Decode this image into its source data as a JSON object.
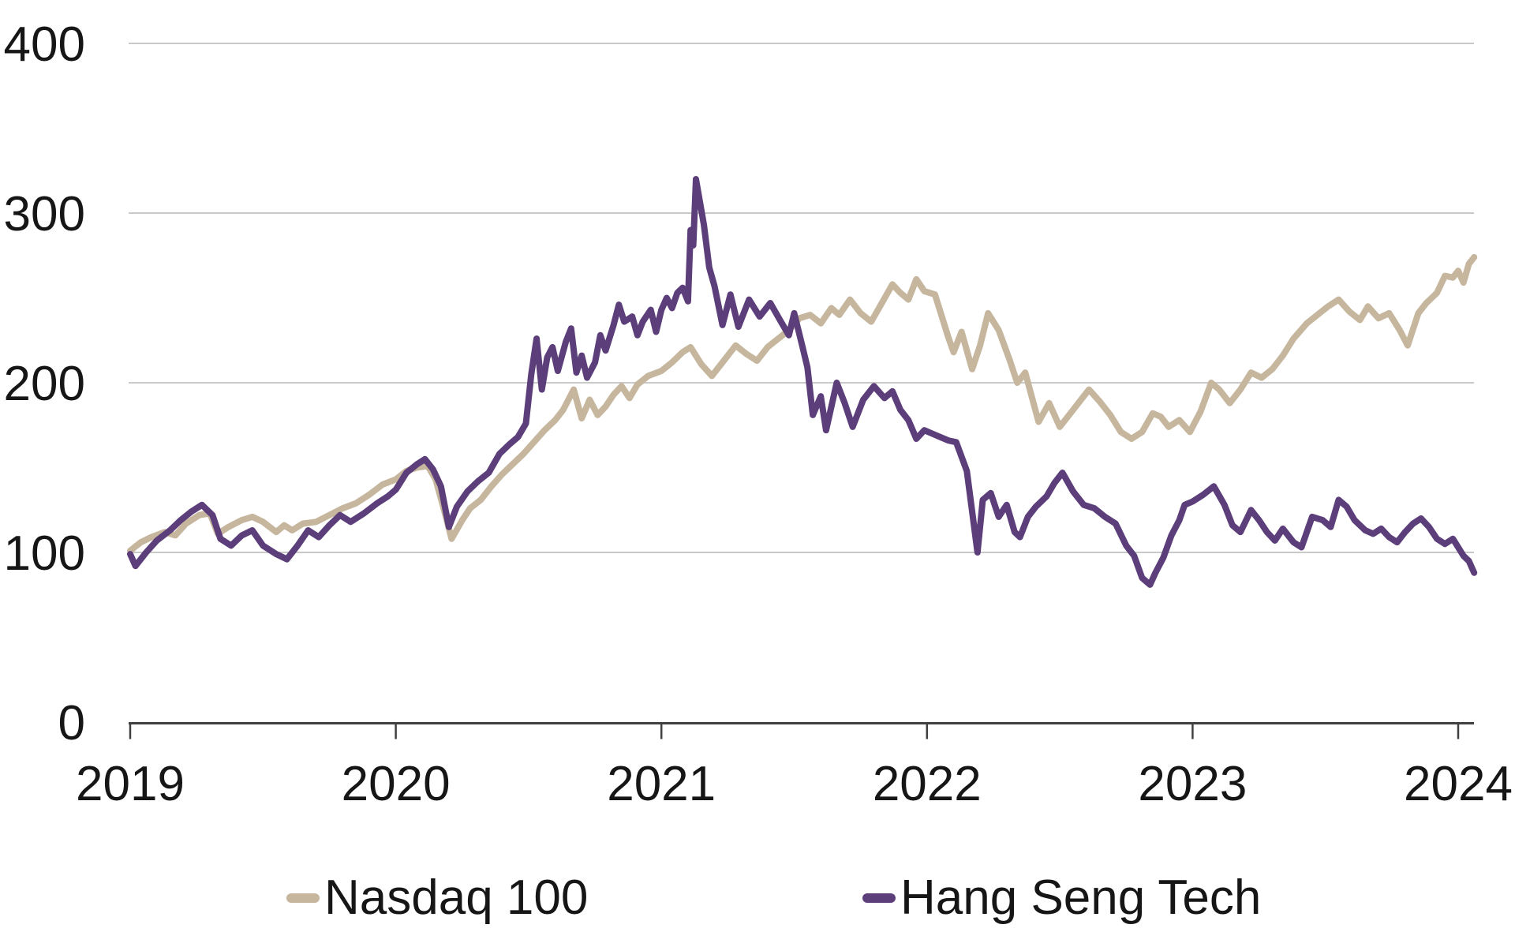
{
  "chart_data": {
    "type": "line",
    "title": "",
    "xlabel": "",
    "ylabel": "",
    "grid": true,
    "legend_position": "bottom",
    "x_axis": {
      "range": [
        2019,
        2024.07
      ],
      "ticks": [
        2019,
        2020,
        2021,
        2022,
        2023,
        2024
      ],
      "tick_labels": [
        "2019",
        "2020",
        "2021",
        "2022",
        "2023",
        "2024"
      ]
    },
    "y_axis": {
      "range": [
        0,
        400
      ],
      "ticks": [
        0,
        100,
        200,
        300,
        400
      ],
      "tick_labels": [
        "0",
        "100",
        "200",
        "300",
        "400"
      ],
      "gridline_values": [
        100,
        200,
        300,
        400
      ]
    },
    "style": {
      "grid_color": "#c9c9c9",
      "axis_color": "#404040",
      "text_color": "#161616",
      "background": "#ffffff",
      "line_width": 8
    },
    "series": [
      {
        "name": "Nasdaq 100",
        "color": "#c6b69e",
        "points": [
          [
            2019.0,
            101
          ],
          [
            2019.04,
            106
          ],
          [
            2019.08,
            109
          ],
          [
            2019.13,
            112
          ],
          [
            2019.17,
            110
          ],
          [
            2019.21,
            117
          ],
          [
            2019.26,
            122
          ],
          [
            2019.3,
            123
          ],
          [
            2019.33,
            111
          ],
          [
            2019.37,
            115
          ],
          [
            2019.42,
            119
          ],
          [
            2019.46,
            121
          ],
          [
            2019.5,
            118
          ],
          [
            2019.55,
            112
          ],
          [
            2019.58,
            116
          ],
          [
            2019.61,
            113
          ],
          [
            2019.65,
            117
          ],
          [
            2019.7,
            118
          ],
          [
            2019.75,
            122
          ],
          [
            2019.8,
            126
          ],
          [
            2019.85,
            129
          ],
          [
            2019.9,
            134
          ],
          [
            2019.95,
            140
          ],
          [
            2020.0,
            143
          ],
          [
            2020.04,
            148
          ],
          [
            2020.08,
            150
          ],
          [
            2020.12,
            151
          ],
          [
            2020.15,
            143
          ],
          [
            2020.18,
            126
          ],
          [
            2020.21,
            108
          ],
          [
            2020.25,
            119
          ],
          [
            2020.28,
            126
          ],
          [
            2020.32,
            131
          ],
          [
            2020.36,
            139
          ],
          [
            2020.4,
            146
          ],
          [
            2020.44,
            152
          ],
          [
            2020.48,
            158
          ],
          [
            2020.52,
            165
          ],
          [
            2020.56,
            172
          ],
          [
            2020.6,
            178
          ],
          [
            2020.63,
            184
          ],
          [
            2020.67,
            196
          ],
          [
            2020.7,
            179
          ],
          [
            2020.73,
            190
          ],
          [
            2020.76,
            181
          ],
          [
            2020.79,
            186
          ],
          [
            2020.82,
            193
          ],
          [
            2020.85,
            198
          ],
          [
            2020.88,
            191
          ],
          [
            2020.91,
            199
          ],
          [
            2020.95,
            204
          ],
          [
            2021.0,
            207
          ],
          [
            2021.04,
            212
          ],
          [
            2021.08,
            218
          ],
          [
            2021.11,
            221
          ],
          [
            2021.15,
            211
          ],
          [
            2021.19,
            204
          ],
          [
            2021.24,
            214
          ],
          [
            2021.28,
            222
          ],
          [
            2021.32,
            217
          ],
          [
            2021.36,
            213
          ],
          [
            2021.4,
            221
          ],
          [
            2021.44,
            226
          ],
          [
            2021.48,
            231
          ],
          [
            2021.52,
            238
          ],
          [
            2021.56,
            240
          ],
          [
            2021.6,
            235
          ],
          [
            2021.64,
            244
          ],
          [
            2021.67,
            240
          ],
          [
            2021.71,
            249
          ],
          [
            2021.75,
            241
          ],
          [
            2021.79,
            236
          ],
          [
            2021.83,
            247
          ],
          [
            2021.87,
            258
          ],
          [
            2021.9,
            253
          ],
          [
            2021.93,
            249
          ],
          [
            2021.96,
            261
          ],
          [
            2021.99,
            254
          ],
          [
            2022.03,
            252
          ],
          [
            2022.06,
            237
          ],
          [
            2022.08,
            227
          ],
          [
            2022.1,
            218
          ],
          [
            2022.13,
            230
          ],
          [
            2022.17,
            208
          ],
          [
            2022.2,
            222
          ],
          [
            2022.23,
            241
          ],
          [
            2022.27,
            231
          ],
          [
            2022.31,
            214
          ],
          [
            2022.34,
            200
          ],
          [
            2022.37,
            206
          ],
          [
            2022.42,
            177
          ],
          [
            2022.46,
            188
          ],
          [
            2022.5,
            174
          ],
          [
            2022.54,
            182
          ],
          [
            2022.58,
            190
          ],
          [
            2022.61,
            196
          ],
          [
            2022.65,
            189
          ],
          [
            2022.69,
            181
          ],
          [
            2022.73,
            171
          ],
          [
            2022.77,
            167
          ],
          [
            2022.81,
            171
          ],
          [
            2022.85,
            182
          ],
          [
            2022.88,
            180
          ],
          [
            2022.91,
            174
          ],
          [
            2022.95,
            178
          ],
          [
            2022.99,
            171
          ],
          [
            2023.03,
            183
          ],
          [
            2023.07,
            200
          ],
          [
            2023.1,
            196
          ],
          [
            2023.14,
            188
          ],
          [
            2023.18,
            196
          ],
          [
            2023.22,
            206
          ],
          [
            2023.26,
            203
          ],
          [
            2023.3,
            208
          ],
          [
            2023.34,
            216
          ],
          [
            2023.38,
            226
          ],
          [
            2023.43,
            235
          ],
          [
            2023.47,
            240
          ],
          [
            2023.51,
            245
          ],
          [
            2023.55,
            249
          ],
          [
            2023.59,
            242
          ],
          [
            2023.63,
            237
          ],
          [
            2023.66,
            245
          ],
          [
            2023.7,
            238
          ],
          [
            2023.74,
            241
          ],
          [
            2023.78,
            231
          ],
          [
            2023.81,
            222
          ],
          [
            2023.85,
            241
          ],
          [
            2023.88,
            247
          ],
          [
            2023.92,
            253
          ],
          [
            2023.95,
            263
          ],
          [
            2023.98,
            262
          ],
          [
            2024.0,
            266
          ],
          [
            2024.02,
            259
          ],
          [
            2024.04,
            270
          ],
          [
            2024.06,
            274
          ]
        ]
      },
      {
        "name": "Hang Seng Tech",
        "color": "#5c3e7a",
        "points": [
          [
            2019.0,
            99
          ],
          [
            2019.02,
            92
          ],
          [
            2019.06,
            100
          ],
          [
            2019.1,
            107
          ],
          [
            2019.15,
            113
          ],
          [
            2019.19,
            119
          ],
          [
            2019.23,
            124
          ],
          [
            2019.27,
            128
          ],
          [
            2019.31,
            122
          ],
          [
            2019.34,
            108
          ],
          [
            2019.38,
            104
          ],
          [
            2019.42,
            110
          ],
          [
            2019.46,
            113
          ],
          [
            2019.5,
            104
          ],
          [
            2019.55,
            99
          ],
          [
            2019.59,
            96
          ],
          [
            2019.63,
            104
          ],
          [
            2019.67,
            113
          ],
          [
            2019.71,
            109
          ],
          [
            2019.75,
            116
          ],
          [
            2019.79,
            122
          ],
          [
            2019.83,
            118
          ],
          [
            2019.88,
            123
          ],
          [
            2019.93,
            129
          ],
          [
            2019.97,
            133
          ],
          [
            2020.0,
            137
          ],
          [
            2020.04,
            147
          ],
          [
            2020.08,
            152
          ],
          [
            2020.11,
            155
          ],
          [
            2020.14,
            149
          ],
          [
            2020.17,
            139
          ],
          [
            2020.2,
            115
          ],
          [
            2020.23,
            127
          ],
          [
            2020.27,
            136
          ],
          [
            2020.31,
            142
          ],
          [
            2020.35,
            147
          ],
          [
            2020.39,
            158
          ],
          [
            2020.43,
            164
          ],
          [
            2020.46,
            168
          ],
          [
            2020.49,
            176
          ],
          [
            2020.51,
            205
          ],
          [
            2020.53,
            226
          ],
          [
            2020.55,
            196
          ],
          [
            2020.57,
            215
          ],
          [
            2020.59,
            221
          ],
          [
            2020.61,
            207
          ],
          [
            2020.64,
            224
          ],
          [
            2020.66,
            232
          ],
          [
            2020.68,
            206
          ],
          [
            2020.7,
            216
          ],
          [
            2020.72,
            203
          ],
          [
            2020.75,
            212
          ],
          [
            2020.77,
            228
          ],
          [
            2020.79,
            219
          ],
          [
            2020.82,
            234
          ],
          [
            2020.84,
            246
          ],
          [
            2020.86,
            236
          ],
          [
            2020.89,
            239
          ],
          [
            2020.91,
            228
          ],
          [
            2020.93,
            236
          ],
          [
            2020.96,
            243
          ],
          [
            2020.98,
            230
          ],
          [
            2021.0,
            243
          ],
          [
            2021.02,
            250
          ],
          [
            2021.04,
            244
          ],
          [
            2021.06,
            253
          ],
          [
            2021.08,
            256
          ],
          [
            2021.1,
            248
          ],
          [
            2021.11,
            290
          ],
          [
            2021.12,
            281
          ],
          [
            2021.13,
            320
          ],
          [
            2021.16,
            293
          ],
          [
            2021.18,
            268
          ],
          [
            2021.2,
            257
          ],
          [
            2021.23,
            234
          ],
          [
            2021.26,
            252
          ],
          [
            2021.29,
            233
          ],
          [
            2021.33,
            249
          ],
          [
            2021.37,
            239
          ],
          [
            2021.41,
            247
          ],
          [
            2021.45,
            236
          ],
          [
            2021.48,
            228
          ],
          [
            2021.5,
            241
          ],
          [
            2021.53,
            222
          ],
          [
            2021.55,
            209
          ],
          [
            2021.57,
            181
          ],
          [
            2021.6,
            192
          ],
          [
            2021.62,
            172
          ],
          [
            2021.66,
            200
          ],
          [
            2021.69,
            188
          ],
          [
            2021.72,
            174
          ],
          [
            2021.76,
            190
          ],
          [
            2021.8,
            198
          ],
          [
            2021.84,
            191
          ],
          [
            2021.87,
            195
          ],
          [
            2021.9,
            184
          ],
          [
            2021.93,
            178
          ],
          [
            2021.96,
            167
          ],
          [
            2021.99,
            172
          ],
          [
            2022.02,
            170
          ],
          [
            2022.05,
            168
          ],
          [
            2022.08,
            166
          ],
          [
            2022.11,
            165
          ],
          [
            2022.15,
            148
          ],
          [
            2022.19,
            100
          ],
          [
            2022.21,
            131
          ],
          [
            2022.24,
            135
          ],
          [
            2022.27,
            121
          ],
          [
            2022.3,
            128
          ],
          [
            2022.33,
            112
          ],
          [
            2022.35,
            109
          ],
          [
            2022.38,
            121
          ],
          [
            2022.41,
            127
          ],
          [
            2022.45,
            133
          ],
          [
            2022.48,
            141
          ],
          [
            2022.51,
            147
          ],
          [
            2022.55,
            136
          ],
          [
            2022.59,
            128
          ],
          [
            2022.63,
            126
          ],
          [
            2022.67,
            121
          ],
          [
            2022.71,
            117
          ],
          [
            2022.75,
            104
          ],
          [
            2022.78,
            98
          ],
          [
            2022.81,
            85
          ],
          [
            2022.84,
            81
          ],
          [
            2022.86,
            88
          ],
          [
            2022.89,
            97
          ],
          [
            2022.92,
            110
          ],
          [
            2022.95,
            119
          ],
          [
            2022.97,
            128
          ],
          [
            2023.0,
            130
          ],
          [
            2023.04,
            134
          ],
          [
            2023.08,
            139
          ],
          [
            2023.12,
            128
          ],
          [
            2023.15,
            116
          ],
          [
            2023.18,
            112
          ],
          [
            2023.22,
            125
          ],
          [
            2023.25,
            119
          ],
          [
            2023.28,
            112
          ],
          [
            2023.31,
            107
          ],
          [
            2023.34,
            114
          ],
          [
            2023.38,
            106
          ],
          [
            2023.41,
            103
          ],
          [
            2023.45,
            121
          ],
          [
            2023.49,
            119
          ],
          [
            2023.52,
            115
          ],
          [
            2023.55,
            131
          ],
          [
            2023.58,
            127
          ],
          [
            2023.61,
            119
          ],
          [
            2023.65,
            113
          ],
          [
            2023.68,
            111
          ],
          [
            2023.71,
            114
          ],
          [
            2023.74,
            109
          ],
          [
            2023.77,
            106
          ],
          [
            2023.8,
            112
          ],
          [
            2023.83,
            117
          ],
          [
            2023.86,
            120
          ],
          [
            2023.89,
            115
          ],
          [
            2023.92,
            108
          ],
          [
            2023.95,
            105
          ],
          [
            2023.98,
            108
          ],
          [
            2024.0,
            103
          ],
          [
            2024.02,
            98
          ],
          [
            2024.04,
            95
          ],
          [
            2024.06,
            88
          ]
        ]
      }
    ]
  },
  "legend": {
    "items": [
      {
        "label": "Nasdaq 100"
      },
      {
        "label": "Hang Seng Tech"
      }
    ]
  }
}
